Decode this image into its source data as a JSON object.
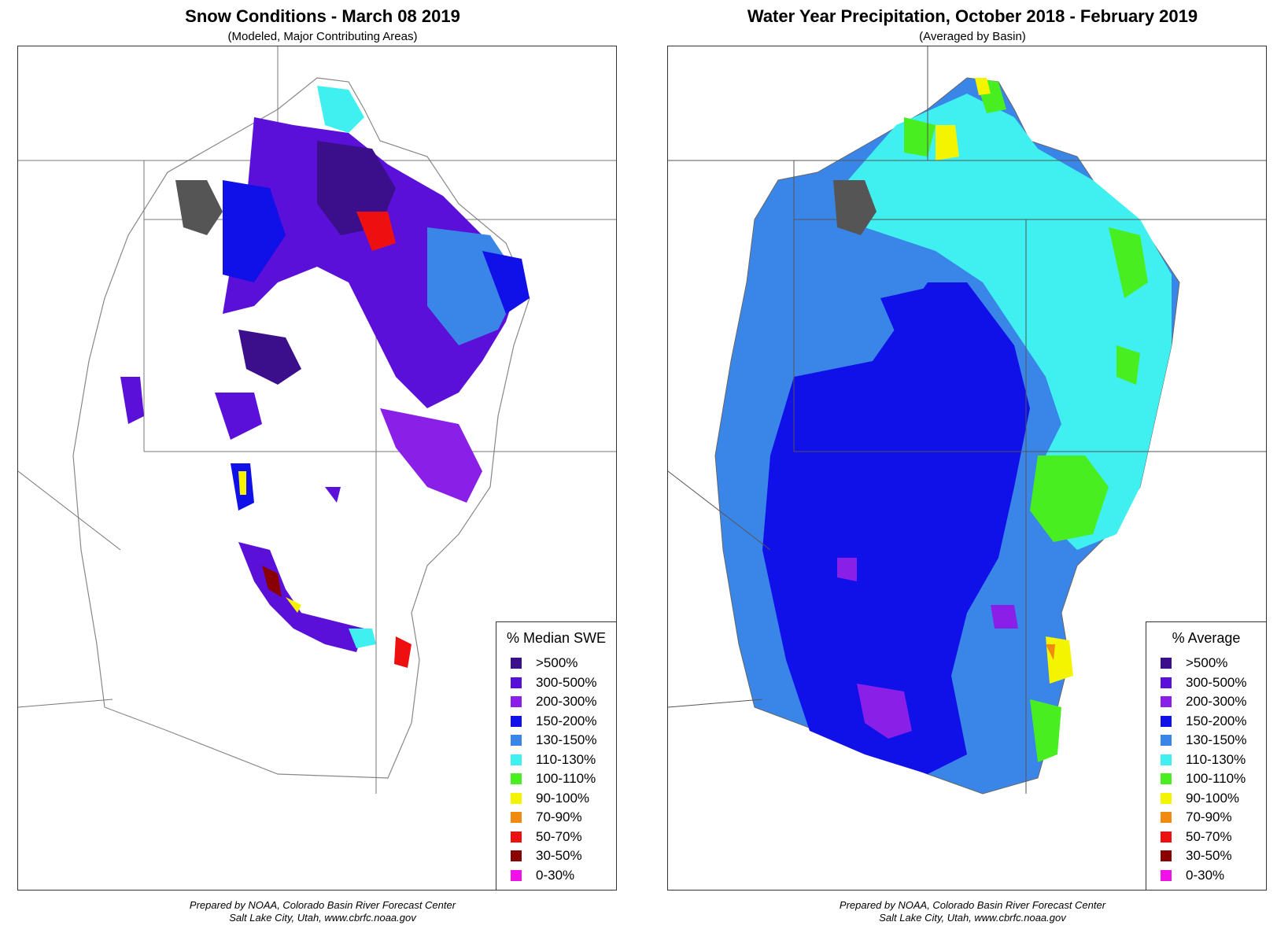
{
  "left_map": {
    "title": "Snow Conditions - March 08 2019",
    "subtitle": "(Modeled, Major Contributing Areas)",
    "legend_title": "% Median SWE",
    "credit_line1": "Prepared by NOAA, Colorado Basin River Forecast Center",
    "credit_line2": "Salt Lake City, Utah, www.cbrfc.noaa.gov"
  },
  "right_map": {
    "title": "Water Year Precipitation, October 2018 - February 2019",
    "subtitle": "(Averaged by Basin)",
    "legend_title": "% Average",
    "credit_line1": "Prepared by NOAA, Colorado Basin River Forecast Center",
    "credit_line2": "Salt Lake City, Utah, www.cbrfc.noaa.gov"
  },
  "legend_items": [
    {
      "label": ">500%",
      "color": "#3b0f8c"
    },
    {
      "label": "300-500%",
      "color": "#5a10d8"
    },
    {
      "label": "200-300%",
      "color": "#8a1fe8"
    },
    {
      "label": "150-200%",
      "color": "#1010e8"
    },
    {
      "label": "130-150%",
      "color": "#3a86e8"
    },
    {
      "label": "110-130%",
      "color": "#40f0f0"
    },
    {
      "label": "100-110%",
      "color": "#48ee20"
    },
    {
      "label": "90-100%",
      "color": "#f4f400"
    },
    {
      "label": "70-90%",
      "color": "#f08a10"
    },
    {
      "label": "50-70%",
      "color": "#ee1010"
    },
    {
      "label": "30-50%",
      "color": "#8a0000"
    },
    {
      "label": "0-30%",
      "color": "#f010e8"
    }
  ]
}
